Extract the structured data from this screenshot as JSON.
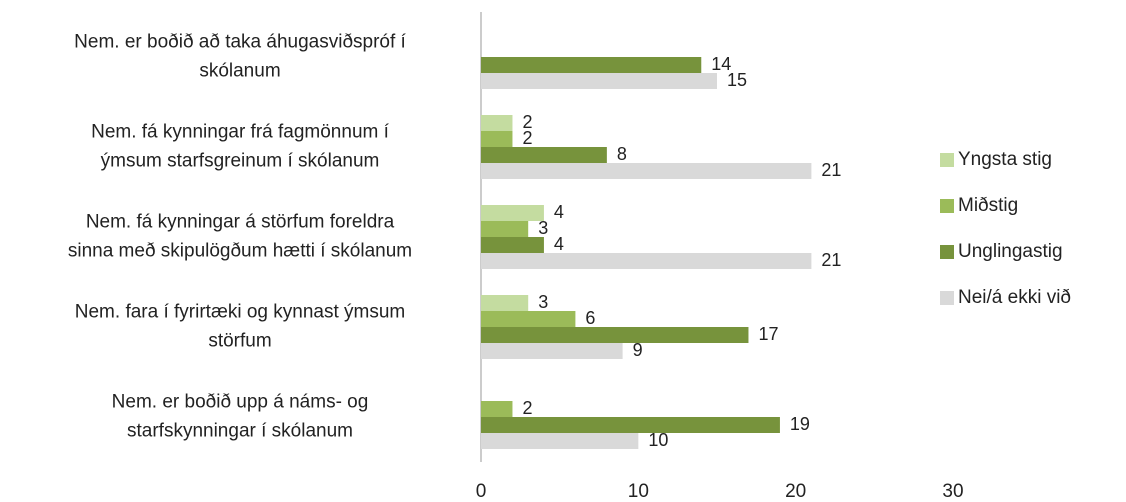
{
  "chart_data": {
    "type": "hbar",
    "categories": [
      [
        "Nem. er boðið að taka áhugasviðspróf í",
        "skólanum"
      ],
      [
        "Nem. fá kynningar frá fagmönnum í",
        "ýmsum starfsgreinum í skólanum"
      ],
      [
        "Nem. fá kynningar á störfum foreldra",
        "sinna með skipulögðum hætti í skólanum"
      ],
      [
        "Nem. fara í fyrirtæki og kynnast ýmsum",
        "störfum"
      ],
      [
        "Nem. er boðið upp á náms- og",
        "starfskynningar í skólanum"
      ]
    ],
    "series": [
      {
        "name": "Yngsta stig",
        "color": "#c4dca0",
        "values": [
          null,
          2,
          4,
          3,
          null
        ]
      },
      {
        "name": "Miðstig",
        "color": "#9bbb59",
        "values": [
          null,
          2,
          3,
          6,
          2
        ]
      },
      {
        "name": "Unglingastig",
        "color": "#77933c",
        "values": [
          14,
          8,
          4,
          17,
          19
        ]
      },
      {
        "name": "Nei/á ekki við",
        "color": "#d9d9d9",
        "values": [
          15,
          21,
          21,
          9,
          10
        ]
      }
    ],
    "xlim": [
      0,
      30
    ],
    "xticks": [
      0,
      10,
      20,
      30
    ],
    "grid": false,
    "legend": "right"
  }
}
